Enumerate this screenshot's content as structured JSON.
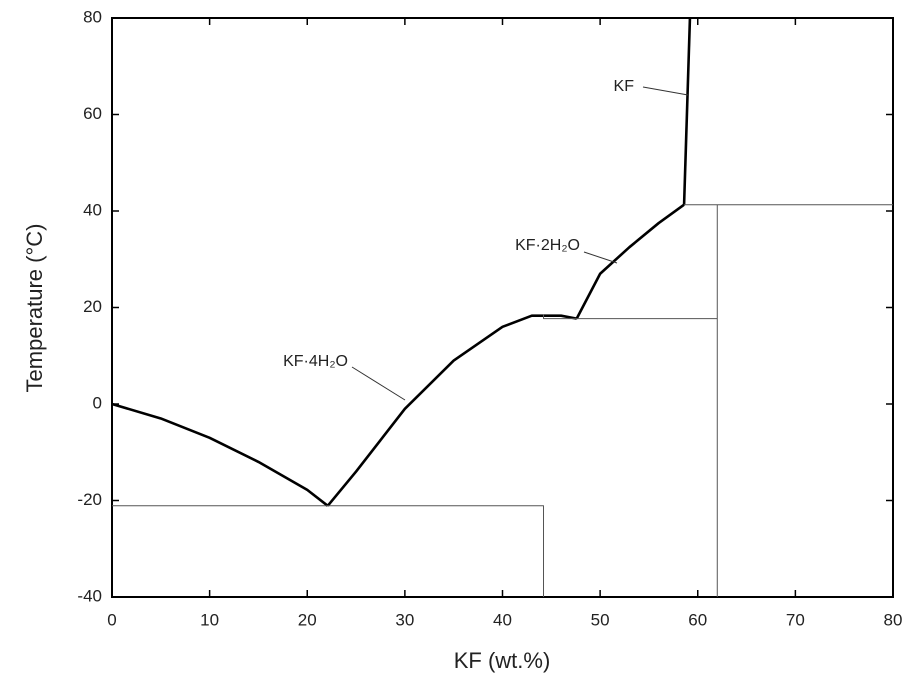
{
  "chart_data": {
    "type": "line",
    "xlabel": "KF (wt.%)",
    "ylabel": "Temperature (°C)",
    "xlim": [
      0,
      80
    ],
    "xticks": [
      0,
      10,
      20,
      30,
      40,
      50,
      60,
      70,
      80
    ],
    "ylim": [
      -40,
      80
    ],
    "yticks": [
      -40,
      -20,
      0,
      20,
      40,
      60,
      80
    ],
    "series": [
      {
        "color": "#000000",
        "line_width": 2.6,
        "x": [
          0,
          5,
          10,
          15,
          20,
          22.1
        ],
        "values": [
          0,
          -3,
          -7,
          -12,
          -17.8,
          -21.1
        ]
      },
      {
        "name": "KF·4H₂O",
        "color": "#000000",
        "line_width": 2.6,
        "x": [
          22.1,
          25,
          30,
          35,
          40,
          43,
          46,
          47.6
        ],
        "values": [
          -21.1,
          -14,
          -1,
          9,
          16,
          18.3,
          18.3,
          17.7
        ]
      },
      {
        "name": "KF·2H₂O",
        "color": "#000000",
        "line_width": 2.6,
        "x": [
          47.6,
          50,
          53,
          56,
          58.6
        ],
        "values": [
          17.7,
          27,
          32.5,
          37.5,
          41.3
        ]
      },
      {
        "name": "KF",
        "color": "#000000",
        "line_width": 2.6,
        "x": [
          58.6,
          59.2
        ],
        "values": [
          41.3,
          80
        ]
      },
      {
        "color": "#555555",
        "line_width": 1,
        "x": [
          0,
          44.2,
          44.2
        ],
        "values": [
          -21.1,
          -21.1,
          -40
        ]
      },
      {
        "color": "#555555",
        "line_width": 1,
        "x": [
          44.2,
          44.2,
          62
        ],
        "values": [
          18.5,
          17.7,
          17.7
        ]
      },
      {
        "color": "#555555",
        "line_width": 1,
        "x": [
          62,
          62
        ],
        "values": [
          -40,
          41.3
        ]
      },
      {
        "color": "#555555",
        "line_width": 1,
        "x": [
          58.6,
          80
        ],
        "values": [
          41.3,
          41.3
        ]
      }
    ]
  }
}
